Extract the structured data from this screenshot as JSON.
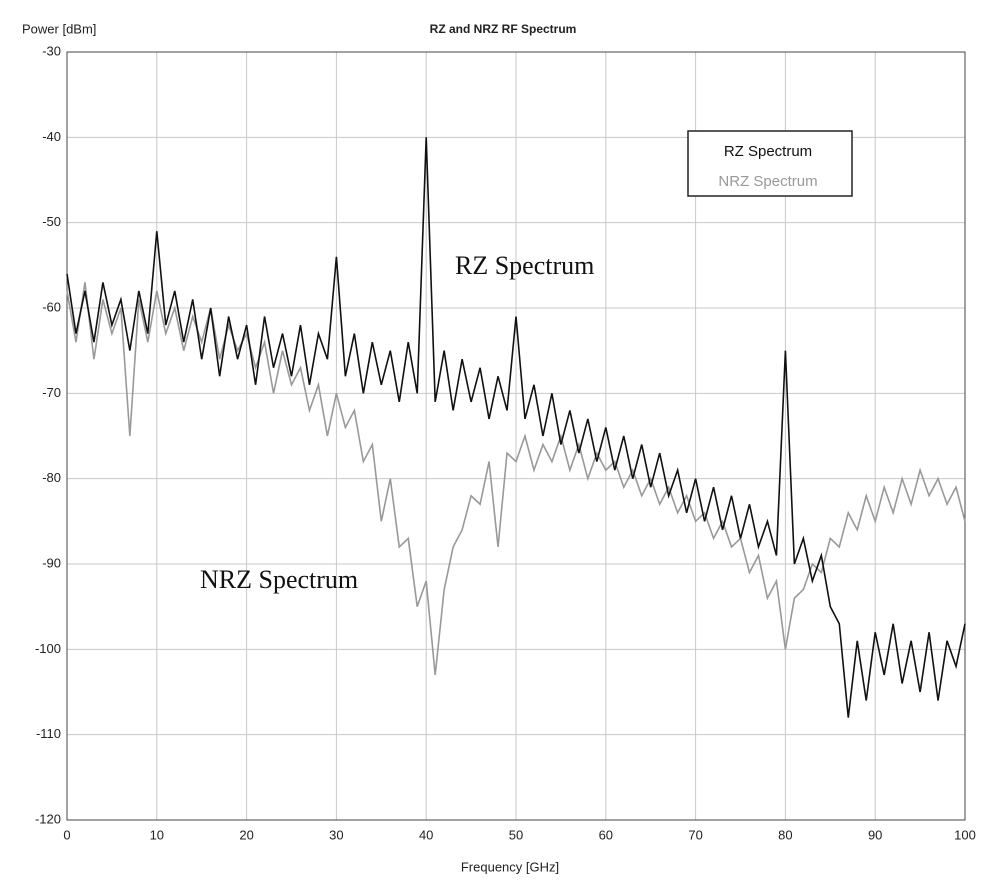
{
  "chart_data": {
    "type": "line",
    "title": "RZ and NRZ RF Spectrum",
    "y_label": "Power [dBm]",
    "x_label": "Frequency [GHz]",
    "x": [
      0,
      1,
      2,
      3,
      4,
      5,
      6,
      7,
      8,
      9,
      10,
      11,
      12,
      13,
      14,
      15,
      16,
      17,
      18,
      19,
      20,
      21,
      22,
      23,
      24,
      25,
      26,
      27,
      28,
      29,
      30,
      31,
      32,
      33,
      34,
      35,
      36,
      37,
      38,
      39,
      40,
      41,
      42,
      43,
      44,
      45,
      46,
      47,
      48,
      49,
      50,
      51,
      52,
      53,
      54,
      55,
      56,
      57,
      58,
      59,
      60,
      61,
      62,
      63,
      64,
      65,
      66,
      67,
      68,
      69,
      70,
      71,
      72,
      73,
      74,
      75,
      76,
      77,
      78,
      79,
      80,
      81,
      82,
      83,
      84,
      85,
      86,
      87,
      88,
      89,
      90,
      91,
      92,
      93,
      94,
      95,
      96,
      97,
      98,
      99,
      100
    ],
    "series": [
      {
        "name": "RZ Spectrum",
        "color": "#111111",
        "values": [
          -56,
          -63,
          -58,
          -64,
          -57,
          -62,
          -59,
          -65,
          -58,
          -63,
          -51,
          -62,
          -58,
          -64,
          -59,
          -66,
          -60,
          -68,
          -61,
          -66,
          -62,
          -69,
          -61,
          -67,
          -63,
          -68,
          -62,
          -69,
          -63,
          -66,
          -54,
          -68,
          -63,
          -70,
          -64,
          -69,
          -65,
          -71,
          -64,
          -70,
          -40,
          -71,
          -65,
          -72,
          -66,
          -71,
          -67,
          -73,
          -68,
          -72,
          -61,
          -73,
          -69,
          -75,
          -70,
          -76,
          -72,
          -77,
          -73,
          -78,
          -74,
          -79,
          -75,
          -80,
          -76,
          -81,
          -77,
          -82,
          -79,
          -84,
          -80,
          -85,
          -81,
          -86,
          -82,
          -87,
          -83,
          -88,
          -85,
          -89,
          -65,
          -90,
          -87,
          -92,
          -89,
          -95,
          -97,
          -108,
          -99,
          -106,
          -98,
          -103,
          -97,
          -104,
          -99,
          -105,
          -98,
          -106,
          -99,
          -102,
          -97
        ]
      },
      {
        "name": "NRZ Spectrum",
        "color": "#999999",
        "values": [
          -58,
          -64,
          -57,
          -66,
          -59,
          -63,
          -60,
          -75,
          -59,
          -64,
          -58,
          -63,
          -60,
          -65,
          -61,
          -64,
          -60,
          -66,
          -62,
          -65,
          -63,
          -67,
          -64,
          -70,
          -65,
          -69,
          -67,
          -72,
          -69,
          -75,
          -70,
          -74,
          -72,
          -78,
          -76,
          -85,
          -80,
          -88,
          -87,
          -95,
          -92,
          -103,
          -93,
          -88,
          -86,
          -82,
          -83,
          -78,
          -88,
          -77,
          -78,
          -75,
          -79,
          -76,
          -78,
          -75,
          -79,
          -76,
          -80,
          -77,
          -79,
          -78,
          -81,
          -79,
          -82,
          -80,
          -83,
          -81,
          -84,
          -82,
          -85,
          -84,
          -87,
          -85,
          -88,
          -87,
          -91,
          -89,
          -94,
          -92,
          -100,
          -94,
          -93,
          -90,
          -91,
          -87,
          -88,
          -84,
          -86,
          -82,
          -85,
          -81,
          -84,
          -80,
          -83,
          -79,
          -82,
          -80,
          -83,
          -81,
          -85
        ]
      }
    ],
    "annotations": [
      "RZ Spectrum",
      "NRZ Spectrum"
    ],
    "xlim": [
      0,
      100
    ],
    "xticks": [
      0,
      10,
      20,
      30,
      40,
      50,
      60,
      70,
      80,
      90,
      100
    ],
    "ylim": [
      -120,
      -30
    ],
    "yticks": [
      -30,
      -40,
      -50,
      -60,
      -70,
      -80,
      -90,
      -100,
      -110,
      -120
    ],
    "grid": true,
    "legend_position": "upper right"
  }
}
